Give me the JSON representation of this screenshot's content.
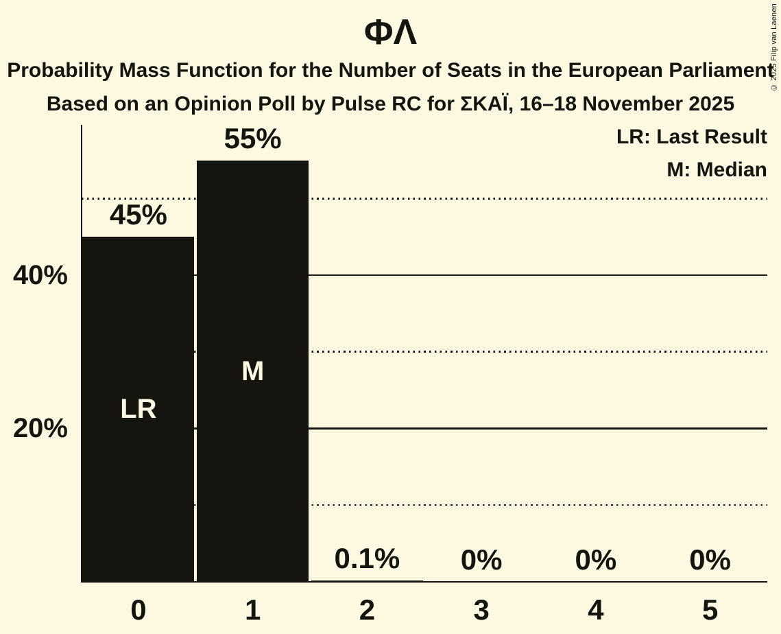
{
  "title": "ΦΛ",
  "subtitle": "Probability Mass Function for the Number of Seats in the European Parliament",
  "subtitle2": "Based on an Opinion Poll by Pulse RC for ΣΚΑΪ, 16–18 November 2025",
  "legend": {
    "last_result": "LR: Last Result",
    "median": "M: Median"
  },
  "copyright": "© 2025 Filip van Laenen",
  "colors": {
    "background": "#FCF8E2",
    "bar": "#15140F",
    "text": "#15140F",
    "bar_label_text": "#FCF8E2"
  },
  "chart_data": {
    "type": "bar",
    "title": "ΦΛ",
    "categories": [
      "0",
      "1",
      "2",
      "3",
      "4",
      "5"
    ],
    "values": [
      45,
      55,
      0.1,
      0,
      0,
      0
    ],
    "value_labels": [
      "45%",
      "55%",
      "0.1%",
      "0%",
      "0%",
      "0%"
    ],
    "bar_annotations": [
      "LR",
      "M",
      "",
      "",
      "",
      ""
    ],
    "annotation_meanings": {
      "LR": "Last Result",
      "M": "Median"
    },
    "y_tick_labels": [
      {
        "label": "40%",
        "value": 40
      },
      {
        "label": "20%",
        "value": 20
      }
    ],
    "solid_gridlines": [
      40,
      20
    ],
    "dotted_gridlines": [
      50,
      30,
      10
    ],
    "ylim": [
      0,
      59.5
    ],
    "grid": "horizontal",
    "legend_position": "top-right"
  }
}
